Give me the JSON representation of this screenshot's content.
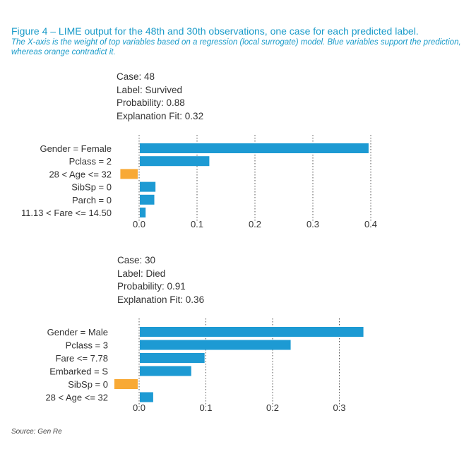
{
  "figure": {
    "title": "Figure 4 – LIME output for the 48th and 30th observations, one case for each predicted label.",
    "subtitle": "The X-axis is the weight of top variables based on a regression (local surrogate) model. Blue variables support the prediction, whereas orange contradict it.",
    "source": "Source: Gen Re"
  },
  "colors": {
    "support": "#1d9ad3",
    "contradict": "#f8a935",
    "text": "#333333",
    "title": "#1a9bc9"
  },
  "chart_data": [
    {
      "type": "bar",
      "orientation": "horizontal",
      "case_lines": [
        "Case: 48",
        "Label: Survived",
        "Probability: 0.88",
        "Explanation Fit: 0.32"
      ],
      "categories": [
        "Gender = Female",
        "Pclass = 2",
        "28 < Age <= 32",
        "SibSp = 0",
        "Parch = 0",
        "11.13 < Fare <= 14.50"
      ],
      "values": [
        0.395,
        0.12,
        -0.03,
        0.027,
        0.025,
        0.01
      ],
      "xticks": [
        0.0,
        0.1,
        0.2,
        0.3,
        0.4
      ],
      "xtick_labels": [
        "0.0",
        "0.1",
        "0.2",
        "0.3",
        "0.4"
      ],
      "xlim": [
        -0.03,
        0.4
      ],
      "grid": "vertical dotted",
      "xlabel": "",
      "ylabel": ""
    },
    {
      "type": "bar",
      "orientation": "horizontal",
      "case_lines": [
        "Case: 30",
        "Label: Died",
        "Probability: 0.91",
        "Explanation Fit: 0.36"
      ],
      "categories": [
        "Gender = Male",
        "Pclass = 3",
        "Fare <= 7.78",
        "Embarked = S",
        "SibSp = 0",
        "28 < Age <= 32"
      ],
      "values": [
        0.335,
        0.226,
        0.097,
        0.077,
        -0.035,
        0.02
      ],
      "xticks": [
        0.0,
        0.1,
        0.2,
        0.3
      ],
      "xtick_labels": [
        "0.0",
        "0.1",
        "0.2",
        "0.3"
      ],
      "xlim": [
        -0.035,
        0.335
      ],
      "grid": "vertical dotted",
      "xlabel": "",
      "ylabel": ""
    }
  ]
}
